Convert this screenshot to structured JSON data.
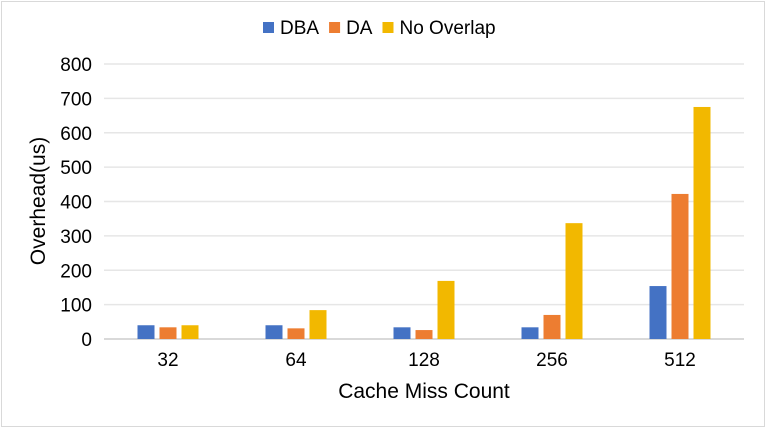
{
  "chart_data": {
    "type": "bar",
    "title": "",
    "xlabel": "Cache Miss Count",
    "ylabel": "Overhead(us)",
    "categories": [
      "32",
      "64",
      "128",
      "256",
      "512"
    ],
    "ylim": [
      0,
      800
    ],
    "yticks": [
      0,
      100,
      200,
      300,
      400,
      500,
      600,
      700,
      800
    ],
    "grid": true,
    "legend": "top",
    "series": [
      {
        "name": "DBA",
        "color": "#4472c4",
        "values": [
          40,
          40,
          34,
          34,
          154
        ]
      },
      {
        "name": "DA",
        "color": "#ed7d31",
        "values": [
          34,
          31,
          26,
          70,
          422
        ]
      },
      {
        "name": "No Overlap",
        "color": "#f2b800",
        "values": [
          40,
          84,
          169,
          337,
          675
        ]
      }
    ]
  }
}
